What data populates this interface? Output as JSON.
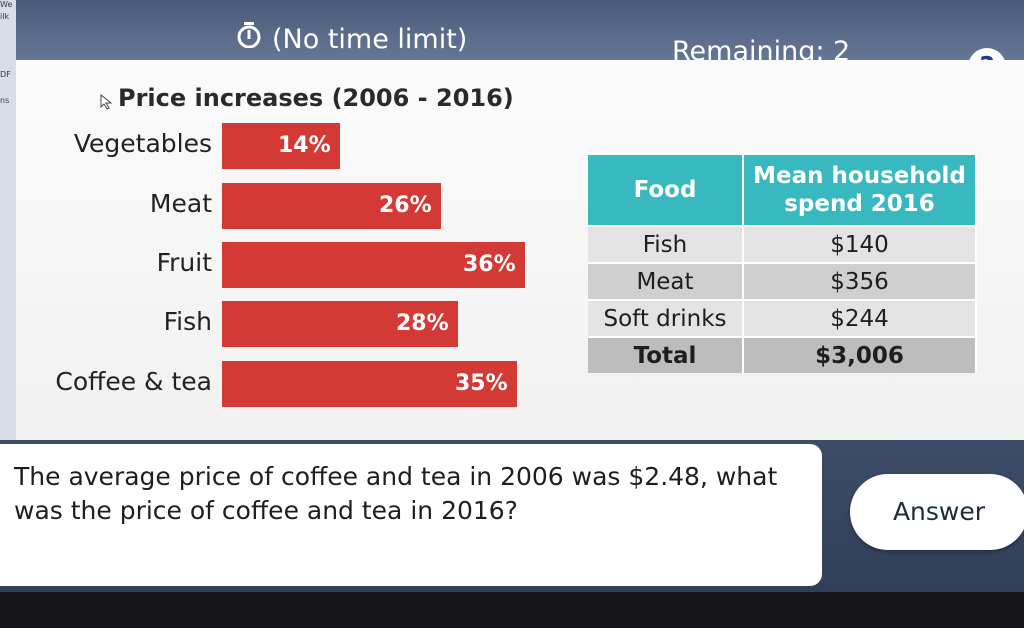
{
  "desktop_strip": [
    "We",
    "ilk",
    "DF",
    "ns"
  ],
  "header": {
    "timer_label": "(No time limit)",
    "remaining_label": "Remaining: 2",
    "help_label": "?"
  },
  "chart_data": {
    "type": "bar",
    "title": "Price increases (2006 - 2016)",
    "categories": [
      "Vegetables",
      "Meat",
      "Fruit",
      "Fish",
      "Coffee & tea"
    ],
    "values": [
      14,
      26,
      36,
      28,
      35
    ],
    "value_labels": [
      "14%",
      "26%",
      "36%",
      "28%",
      "35%"
    ],
    "orientation": "horizontal",
    "bar_color": "#d43a35"
  },
  "table": {
    "headers": [
      "Food",
      "Mean household spend 2016"
    ],
    "rows": [
      [
        "Fish",
        "$140"
      ],
      [
        "Meat",
        "$356"
      ],
      [
        "Soft drinks",
        "$244"
      ]
    ],
    "total": [
      "Total",
      "$3,006"
    ],
    "header_color": "#38b8bf"
  },
  "question": {
    "text": "The average price of coffee and tea in 2006 was $2.48, what was the price of coffee and tea in 2016?",
    "answer_label": "Answer"
  }
}
